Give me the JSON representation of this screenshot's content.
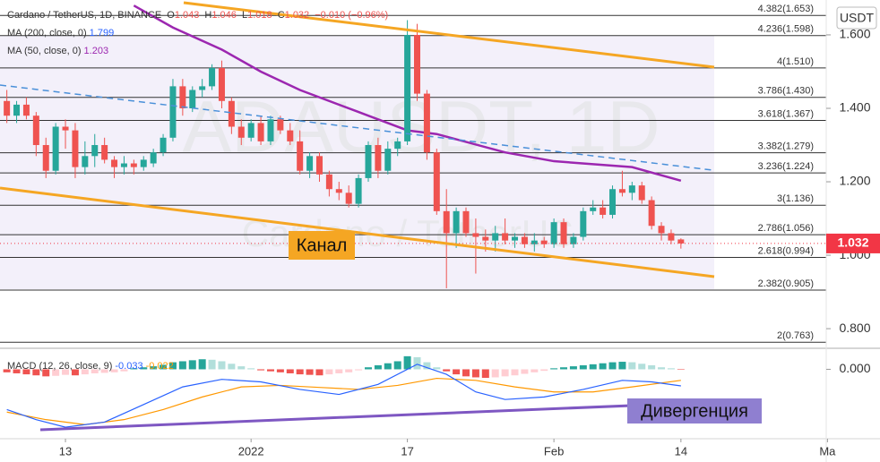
{
  "chart_data": [
    {
      "type": "candlestick",
      "symbol": "Cardano / TetherUS, 1D, BINANCE",
      "ohlc_legend": [
        {
          "label": "O",
          "value": 1.043
        },
        {
          "label": "H",
          "value": 1.046
        },
        {
          "label": "L",
          "value": 1.018
        },
        {
          "label": "C",
          "value": 1.032
        }
      ],
      "change": "−0.010 (−0.96%)",
      "currency": "USDT",
      "watermark": "ADAUSDT, 1D",
      "watermark_sub": "Cardano / TetherUS",
      "channel_label": "Канал",
      "divergence_label": "Дивергенция",
      "up_color": "#26a69a",
      "down_color": "#ef5350",
      "open": [
        1.42,
        1.38,
        1.41,
        1.38,
        1.3,
        1.23,
        1.35,
        1.34,
        1.24,
        1.27,
        1.3,
        1.26,
        1.24,
        1.25,
        1.24,
        1.25,
        1.28,
        1.32,
        1.46,
        1.4,
        1.45,
        1.46,
        1.51,
        1.42,
        1.35,
        1.32,
        1.36,
        1.31,
        1.37,
        1.34,
        1.31,
        1.23,
        1.27,
        1.22,
        1.18,
        1.17,
        1.14,
        1.21,
        1.3,
        1.23,
        1.29,
        1.31,
        1.6,
        1.44,
        1.28,
        1.12,
        1.06,
        1.12,
        1.06,
        1.05,
        1.04,
        1.06,
        1.04,
        1.05,
        1.03,
        1.04,
        1.03,
        1.09,
        1.03,
        1.05,
        1.12,
        1.13,
        1.11,
        1.18,
        1.17,
        1.19,
        1.15,
        1.08,
        1.06,
        1.043
      ],
      "high": [
        1.45,
        1.42,
        1.43,
        1.39,
        1.32,
        1.36,
        1.37,
        1.36,
        1.31,
        1.33,
        1.32,
        1.27,
        1.27,
        1.26,
        1.27,
        1.29,
        1.33,
        1.48,
        1.48,
        1.46,
        1.48,
        1.52,
        1.53,
        1.43,
        1.37,
        1.37,
        1.38,
        1.38,
        1.38,
        1.36,
        1.34,
        1.28,
        1.28,
        1.23,
        1.2,
        1.19,
        1.22,
        1.31,
        1.32,
        1.31,
        1.32,
        1.64,
        1.63,
        1.45,
        1.29,
        1.18,
        1.13,
        1.13,
        1.1,
        1.07,
        1.08,
        1.1,
        1.06,
        1.06,
        1.06,
        1.05,
        1.1,
        1.1,
        1.06,
        1.13,
        1.15,
        1.15,
        1.19,
        1.23,
        1.2,
        1.2,
        1.16,
        1.09,
        1.07,
        1.046
      ],
      "low": [
        1.36,
        1.36,
        1.37,
        1.27,
        1.21,
        1.22,
        1.29,
        1.21,
        1.22,
        1.24,
        1.25,
        1.21,
        1.22,
        1.22,
        1.23,
        1.24,
        1.27,
        1.31,
        1.38,
        1.39,
        1.43,
        1.45,
        1.4,
        1.33,
        1.3,
        1.31,
        1.3,
        1.3,
        1.33,
        1.3,
        1.22,
        1.21,
        1.2,
        1.16,
        1.15,
        1.13,
        1.13,
        1.2,
        1.21,
        1.22,
        1.27,
        1.3,
        1.42,
        1.26,
        1.11,
        0.91,
        1.02,
        1.05,
        0.95,
        1.01,
        1.01,
        1.03,
        1.02,
        1.02,
        1.01,
        1.02,
        1.02,
        1.02,
        1.02,
        1.04,
        1.11,
        1.1,
        1.1,
        1.16,
        1.15,
        1.14,
        1.07,
        1.04,
        1.03,
        1.018
      ],
      "close": [
        1.38,
        1.41,
        1.38,
        1.3,
        1.23,
        1.35,
        1.34,
        1.24,
        1.27,
        1.3,
        1.26,
        1.24,
        1.25,
        1.24,
        1.26,
        1.28,
        1.32,
        1.46,
        1.4,
        1.45,
        1.46,
        1.51,
        1.42,
        1.35,
        1.32,
        1.36,
        1.31,
        1.37,
        1.34,
        1.31,
        1.23,
        1.27,
        1.22,
        1.18,
        1.17,
        1.14,
        1.21,
        1.3,
        1.23,
        1.29,
        1.31,
        1.6,
        1.44,
        1.28,
        1.12,
        1.06,
        1.12,
        1.06,
        1.05,
        1.04,
        1.06,
        1.04,
        1.05,
        1.03,
        1.04,
        1.03,
        1.09,
        1.03,
        1.05,
        1.12,
        1.13,
        1.11,
        1.18,
        1.17,
        1.19,
        1.15,
        1.08,
        1.06,
        1.04,
        1.032
      ],
      "ma": [
        {
          "name": "MA (200, close, 0)",
          "last": 1.799,
          "color": "#2962ff"
        },
        {
          "name": "MA (50, close, 0)",
          "last": 1.203,
          "color": "#9c27b0",
          "x": [
            13,
            17,
            22,
            26,
            30,
            36,
            41,
            44,
            51,
            56,
            64,
            69
          ],
          "values": [
            1.68,
            1.62,
            1.56,
            1.5,
            1.45,
            1.39,
            1.34,
            1.33,
            1.28,
            1.256,
            1.24,
            1.203
          ]
        }
      ],
      "fib_levels": [
        {
          "label": "4.382(1.653)",
          "value": 1.653
        },
        {
          "label": "4.236(1.598)",
          "value": 1.598
        },
        {
          "label": "4(1.510)",
          "value": 1.51
        },
        {
          "label": "3.786(1.430)",
          "value": 1.43
        },
        {
          "label": "3.618(1.367)",
          "value": 1.367
        },
        {
          "label": "3.382(1.279)",
          "value": 1.279
        },
        {
          "label": "3.236(1.224)",
          "value": 1.224
        },
        {
          "label": "3(1.136)",
          "value": 1.136
        },
        {
          "label": "2.786(1.056)",
          "value": 1.056
        },
        {
          "label": "2.618(0.994)",
          "value": 0.994
        },
        {
          "label": "2.382(0.905)",
          "value": 0.905
        },
        {
          "label": "2(0.763)",
          "value": 0.763
        }
      ],
      "fib_color": "#333333",
      "last_price": 1.032,
      "last_price_color": "#f23645",
      "xlim": [
        -0.7,
        84.7
      ],
      "xticks": [
        {
          "value": 6,
          "label": "13"
        },
        {
          "value": 25,
          "label": "2022"
        },
        {
          "value": 41,
          "label": "17"
        },
        {
          "value": 56,
          "label": "Feb"
        },
        {
          "value": 69,
          "label": "14"
        },
        {
          "value": 84,
          "label": "Ma"
        }
      ],
      "ylim": [
        0.749,
        1.695
      ],
      "yticks": [
        {
          "value": 1.6,
          "label": "1.600"
        },
        {
          "value": 1.4,
          "label": "1.400"
        },
        {
          "value": 1.2,
          "label": "1.200"
        },
        {
          "value": 1.0,
          "label": "1.000"
        },
        {
          "value": 0.8,
          "label": "0.800"
        }
      ]
    },
    {
      "type": "macd",
      "name": "MACD (12, 26, close, 9)",
      "legend_values": [
        -0.033,
        -0.022
      ],
      "histogram": [
        -0.006,
        -0.008,
        -0.01,
        -0.012,
        -0.014,
        -0.013,
        -0.011,
        -0.012,
        -0.01,
        -0.008,
        -0.007,
        -0.006,
        -0.004,
        0.002,
        0.004,
        0.006,
        0.009,
        0.014,
        0.016,
        0.018,
        0.02,
        0.019,
        0.016,
        0.011,
        0.006,
        0.002,
        -0.002,
        -0.004,
        -0.006,
        -0.008,
        -0.01,
        -0.011,
        -0.012,
        -0.01,
        -0.008,
        -0.006,
        -0.002,
        0.004,
        0.008,
        0.012,
        0.016,
        0.026,
        0.024,
        0.014,
        0.004,
        -0.004,
        -0.01,
        -0.014,
        -0.016,
        -0.017,
        -0.016,
        -0.014,
        -0.012,
        -0.009,
        -0.006,
        -0.003,
        0.002,
        0.004,
        0.006,
        0.008,
        0.01,
        0.012,
        0.014,
        0.015,
        0.014,
        0.011,
        0.008,
        0.004,
        0.002,
        -0.001
      ],
      "hist_colors": [
        "#26a69a",
        "#b2dfdb",
        "#ef5350",
        "#ffcdd2"
      ],
      "macd": {
        "color": "#2962ff",
        "x": [
          0,
          3,
          6,
          10,
          14,
          18,
          22,
          26,
          30,
          34,
          38,
          42,
          45,
          48,
          51,
          55,
          59,
          63,
          66,
          69
        ],
        "values": [
          -0.08,
          -0.1,
          -0.115,
          -0.105,
          -0.07,
          -0.035,
          -0.02,
          -0.025,
          -0.04,
          -0.05,
          -0.03,
          0.01,
          -0.01,
          -0.045,
          -0.06,
          -0.055,
          -0.04,
          -0.022,
          -0.025,
          -0.033
        ]
      },
      "signal": {
        "color": "#ff9800",
        "x": [
          0,
          4,
          8,
          12,
          16,
          20,
          24,
          28,
          32,
          36,
          40,
          44,
          48,
          52,
          56,
          60,
          64,
          69
        ],
        "values": [
          -0.085,
          -0.1,
          -0.11,
          -0.1,
          -0.08,
          -0.055,
          -0.035,
          -0.032,
          -0.036,
          -0.04,
          -0.032,
          -0.018,
          -0.022,
          -0.035,
          -0.045,
          -0.045,
          -0.035,
          -0.022
        ]
      },
      "ylim": [
        -0.138,
        0.04
      ],
      "yticks": [
        {
          "value": 0,
          "label": "0.000"
        }
      ]
    }
  ]
}
